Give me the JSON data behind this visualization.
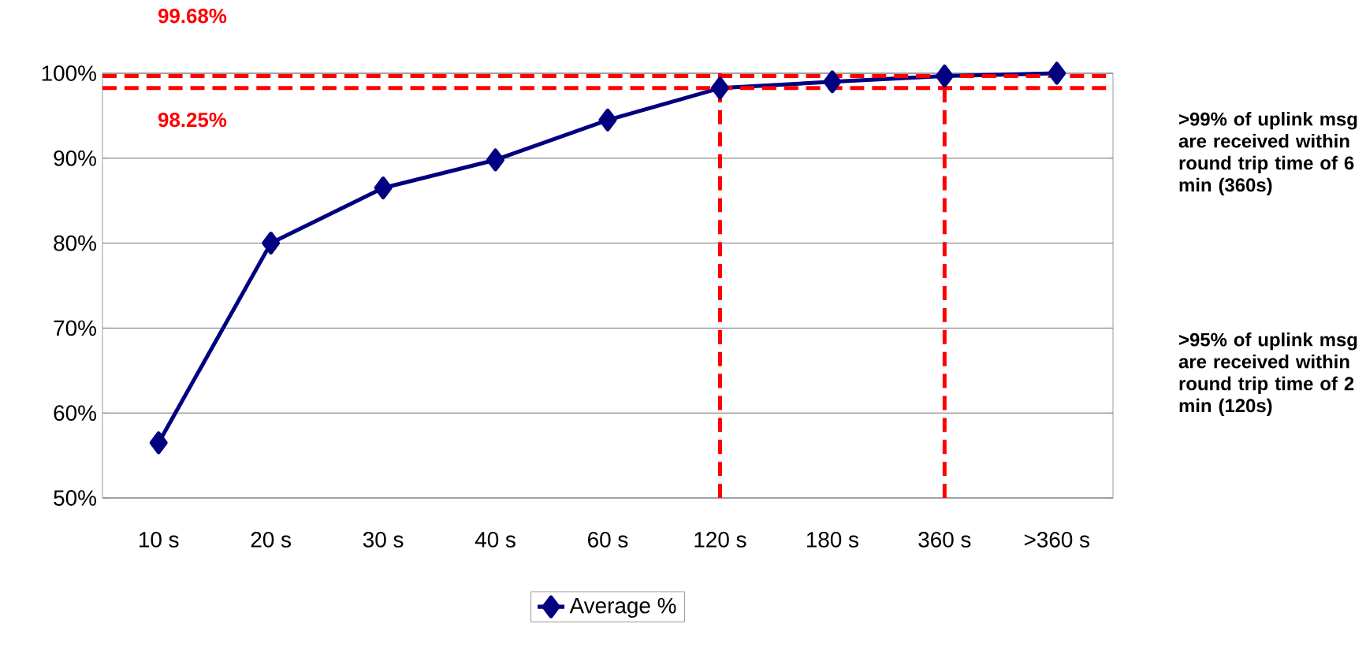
{
  "chart_data": {
    "type": "line",
    "categories": [
      "10 s",
      "20 s",
      "30 s",
      "40 s",
      "60 s",
      "120 s",
      "180 s",
      "360 s",
      ">360 s"
    ],
    "series": [
      {
        "name": "Average %",
        "color": "#000080",
        "values": [
          56.5,
          80,
          86.5,
          89.8,
          94.5,
          98.25,
          99,
          99.68,
          100
        ]
      }
    ],
    "ylim": [
      50,
      100
    ],
    "yticks": [
      {
        "value": 50,
        "label": "50%"
      },
      {
        "value": 60,
        "label": "60%"
      },
      {
        "value": 70,
        "label": "70%"
      },
      {
        "value": 80,
        "label": "80%"
      },
      {
        "value": 90,
        "label": "90%"
      },
      {
        "value": 100,
        "label": "100%"
      }
    ],
    "grid": "y",
    "legend": "bottom",
    "marker": "diamond",
    "line_style": "solid",
    "ref_lines": [
      {
        "axis": "y",
        "value": 99.68,
        "label": "99.68%",
        "color": "#ff0000",
        "line_style": "dashed"
      },
      {
        "axis": "y",
        "value": 98.25,
        "label": "98.25%",
        "color": "#ff0000",
        "line_style": "dashed"
      },
      {
        "axis": "x",
        "value": "120 s",
        "color": "#ff0000",
        "line_style": "dashed"
      },
      {
        "axis": "x",
        "value": "360 s",
        "color": "#ff0000",
        "line_style": "dashed"
      }
    ],
    "annotations": [
      ">99% of uplink msg are received within round trip time of 6 min (360s)",
      ">95% of uplink msg are received within round trip time of 2 min (120s)"
    ]
  }
}
